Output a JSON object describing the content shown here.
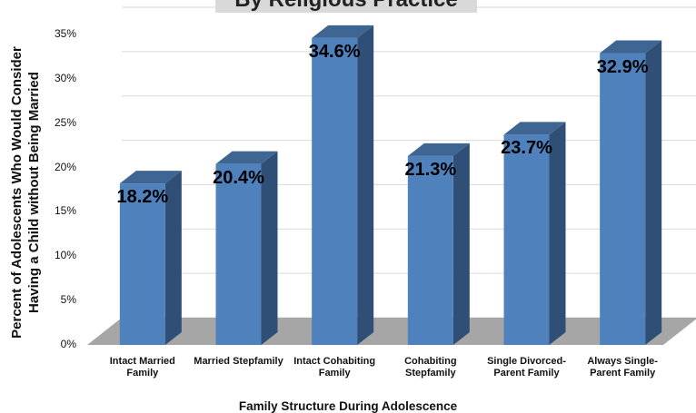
{
  "chart_data": {
    "type": "bar",
    "title": "By Religious Practice",
    "xlabel": "Family Structure During Adolescence",
    "ylabel": "Percent of Adolescents Who Would Consider Having a Child without Being Married",
    "ylim": [
      0,
      35
    ],
    "yticks": [
      "0%",
      "5%",
      "10%",
      "15%",
      "20%",
      "25%",
      "30%",
      "35%"
    ],
    "categories": [
      "Intact Married Family",
      "Married Stepfamily",
      "Intact Cohabiting Family",
      "Cohabiting Stepfamily",
      "Single Divorced-Parent Family",
      "Always Single-Parent Family"
    ],
    "values": [
      18.2,
      20.4,
      34.6,
      21.3,
      23.7,
      32.9
    ],
    "data_labels": [
      "18.2%",
      "20.4%",
      "34.6%",
      "21.3%",
      "23.7%",
      "32.9%"
    ],
    "grid": true,
    "colors": {
      "bar_front": "#4f81bd",
      "bar_side": "#2f4f76",
      "bar_top": "#3f6592",
      "floor": "#a6a6a6",
      "grid": "#d9d9d9"
    }
  }
}
